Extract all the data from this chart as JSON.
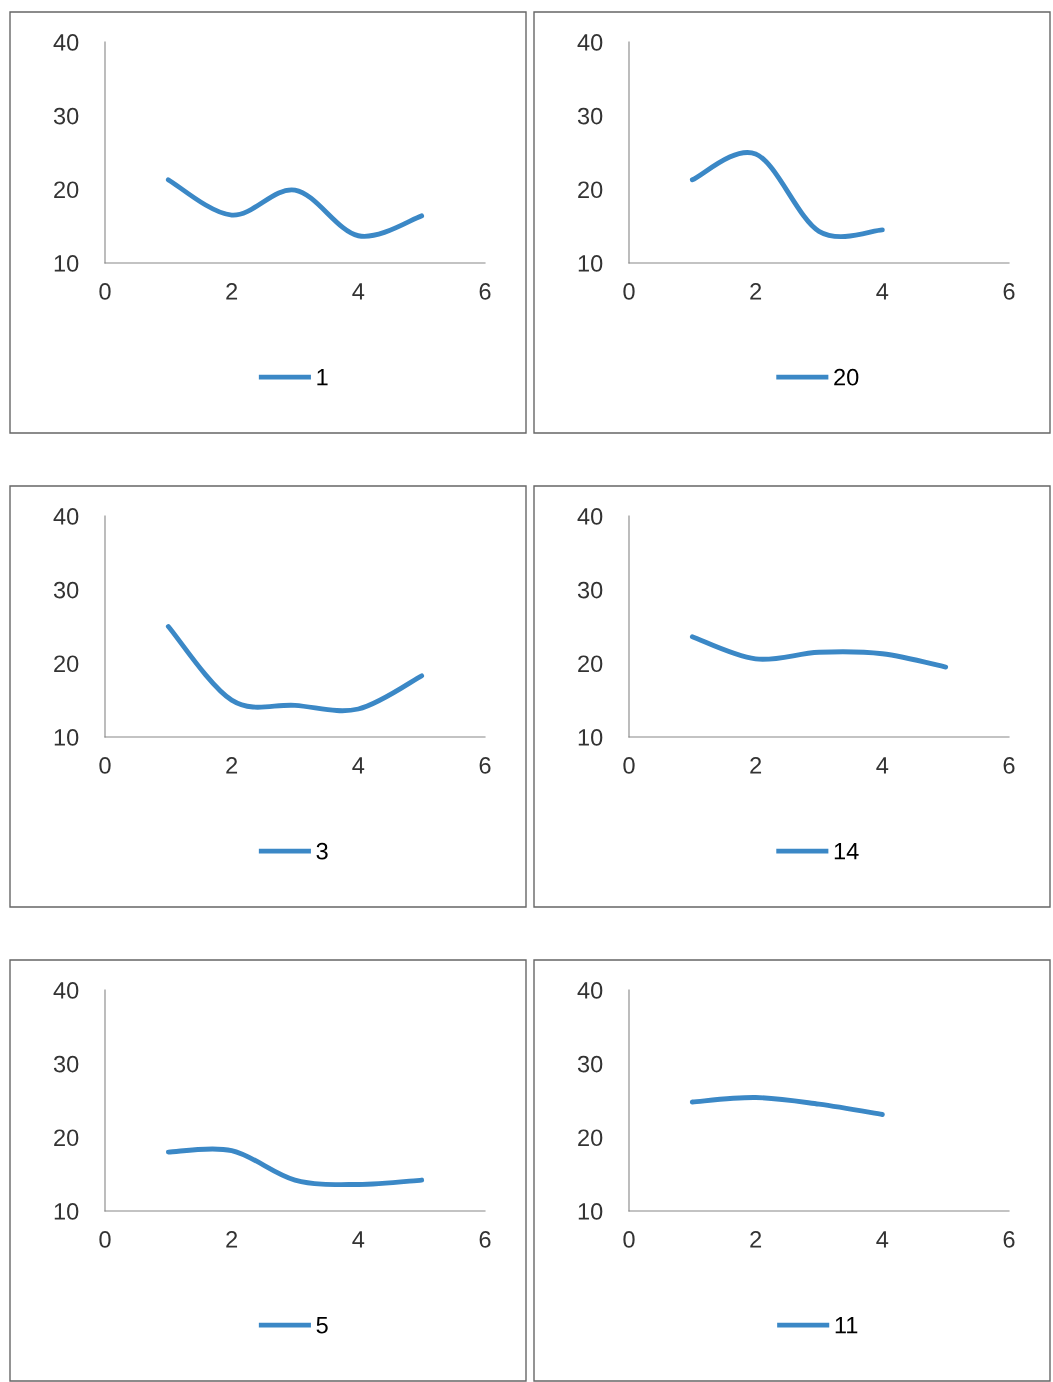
{
  "chart_data": [
    {
      "type": "line",
      "x": [
        1,
        2,
        3,
        4,
        5
      ],
      "xlim": [
        0,
        6
      ],
      "ylim": [
        10,
        40
      ],
      "xticks": [
        0,
        2,
        4,
        6
      ],
      "yticks": [
        10,
        20,
        30,
        40
      ],
      "legend": "bottom",
      "series": [
        {
          "name": "1",
          "color": "#3b88c6",
          "values": [
            21.3,
            16.5,
            19.9,
            13.7,
            16.4
          ]
        }
      ]
    },
    {
      "type": "line",
      "x": [
        1,
        2,
        3,
        4
      ],
      "xlim": [
        0,
        6
      ],
      "ylim": [
        10,
        40
      ],
      "xticks": [
        0,
        2,
        4,
        6
      ],
      "yticks": [
        10,
        20,
        30,
        40
      ],
      "legend": "bottom",
      "series": [
        {
          "name": "20",
          "color": "#3b88c6",
          "values": [
            21.3,
            24.8,
            14.3,
            14.5
          ]
        }
      ]
    },
    {
      "type": "line",
      "x": [
        1,
        2,
        3,
        4,
        5
      ],
      "xlim": [
        0,
        6
      ],
      "ylim": [
        10,
        40
      ],
      "xticks": [
        0,
        2,
        4,
        6
      ],
      "yticks": [
        10,
        20,
        30,
        40
      ],
      "legend": "bottom",
      "series": [
        {
          "name": "3",
          "color": "#3b88c6",
          "values": [
            25.0,
            15.0,
            14.3,
            13.8,
            18.3
          ]
        }
      ]
    },
    {
      "type": "line",
      "x": [
        1,
        2,
        3,
        4,
        5
      ],
      "xlim": [
        0,
        6
      ],
      "ylim": [
        10,
        40
      ],
      "xticks": [
        0,
        2,
        4,
        6
      ],
      "yticks": [
        10,
        20,
        30,
        40
      ],
      "legend": "bottom",
      "series": [
        {
          "name": "14",
          "color": "#3b88c6",
          "values": [
            23.6,
            20.6,
            21.5,
            21.3,
            19.5
          ]
        }
      ]
    },
    {
      "type": "line",
      "x": [
        1,
        2,
        3,
        4,
        5
      ],
      "xlim": [
        0,
        6
      ],
      "ylim": [
        10,
        40
      ],
      "xticks": [
        0,
        2,
        4,
        6
      ],
      "yticks": [
        10,
        20,
        30,
        40
      ],
      "legend": "bottom",
      "series": [
        {
          "name": "5",
          "color": "#3b88c6",
          "values": [
            18.0,
            18.2,
            14.2,
            13.6,
            14.2
          ]
        }
      ]
    },
    {
      "type": "line",
      "x": [
        1,
        2,
        3,
        4
      ],
      "xlim": [
        0,
        6
      ],
      "ylim": [
        10,
        40
      ],
      "xticks": [
        0,
        2,
        4,
        6
      ],
      "yticks": [
        10,
        20,
        30,
        40
      ],
      "legend": "bottom",
      "series": [
        {
          "name": "11",
          "color": "#3b88c6",
          "values": [
            24.8,
            25.4,
            24.5,
            23.1
          ]
        }
      ]
    }
  ]
}
